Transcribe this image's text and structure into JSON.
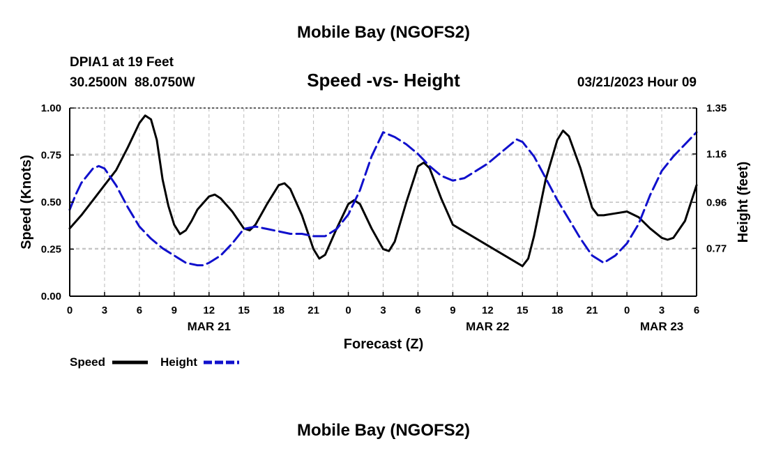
{
  "chart_data": {
    "type": "line",
    "title": "Mobile Bay (NGOFS2)",
    "footer_title": "Mobile Bay (NGOFS2)",
    "subtitle": "Speed -vs- Height",
    "station": "DPIA1 at 19 Feet",
    "coords": "30.2500N  88.0750W",
    "timestamp": "03/21/2023 Hour 09",
    "xlabel": "Forecast (Z)",
    "ylabel_left": "Speed (Knots)",
    "ylabel_right": "Height (feet)",
    "x_range_hours": [
      0,
      54
    ],
    "ylim_left": [
      0,
      1
    ],
    "ylim_right": [
      0.572,
      1.35
    ],
    "grid": true,
    "x_ticks": [
      {
        "hour": 0,
        "label": "0"
      },
      {
        "hour": 3,
        "label": "3"
      },
      {
        "hour": 6,
        "label": "6"
      },
      {
        "hour": 9,
        "label": "9"
      },
      {
        "hour": 12,
        "label": "12"
      },
      {
        "hour": 15,
        "label": "15"
      },
      {
        "hour": 18,
        "label": "18"
      },
      {
        "hour": 21,
        "label": "21"
      },
      {
        "hour": 24,
        "label": "0"
      },
      {
        "hour": 27,
        "label": "3"
      },
      {
        "hour": 30,
        "label": "6"
      },
      {
        "hour": 33,
        "label": "9"
      },
      {
        "hour": 36,
        "label": "12"
      },
      {
        "hour": 39,
        "label": "15"
      },
      {
        "hour": 42,
        "label": "18"
      },
      {
        "hour": 45,
        "label": "21"
      },
      {
        "hour": 48,
        "label": "0"
      },
      {
        "hour": 51,
        "label": "3"
      },
      {
        "hour": 54,
        "label": "6"
      }
    ],
    "date_labels": [
      {
        "hour": 12,
        "label": "MAR 21"
      },
      {
        "hour": 36,
        "label": "MAR 22"
      },
      {
        "hour": 51,
        "label": "MAR 23"
      }
    ],
    "left_ticks": [
      {
        "value": 0.0,
        "label": "0.00"
      },
      {
        "value": 0.25,
        "label": "0.25"
      },
      {
        "value": 0.5,
        "label": "0.50"
      },
      {
        "value": 0.75,
        "label": "0.75"
      },
      {
        "value": 1.0,
        "label": "1.00"
      }
    ],
    "right_ticks": [
      {
        "value": 0.77,
        "label": "0.77"
      },
      {
        "value": 0.96,
        "label": "0.96"
      },
      {
        "value": 1.16,
        "label": "1.16"
      },
      {
        "value": 1.35,
        "label": "1.35"
      }
    ],
    "legend": [
      {
        "name": "Speed",
        "color": "#000000",
        "dash": "solid"
      },
      {
        "name": "Height",
        "color": "#1010cc",
        "dash": "dashed"
      }
    ],
    "series": [
      {
        "name": "Speed",
        "axis": "left",
        "color": "#000000",
        "dash": "solid",
        "x": [
          0,
          1,
          2,
          3,
          4,
          5,
          6,
          6.5,
          7,
          7.5,
          8,
          8.5,
          9,
          9.5,
          10,
          10.5,
          11,
          12,
          12.5,
          13,
          14,
          15,
          15.5,
          16,
          17,
          18,
          18.5,
          19,
          20,
          21,
          21.5,
          22,
          23,
          24,
          24.5,
          25,
          26,
          27,
          27.5,
          28,
          29,
          30,
          30.5,
          31,
          32,
          33,
          39,
          39.5,
          40,
          41,
          42,
          42.5,
          43,
          44,
          45,
          45.5,
          46,
          47,
          48,
          49,
          50,
          51,
          51.5,
          52,
          53,
          54
        ],
        "y": [
          0.36,
          0.43,
          0.51,
          0.59,
          0.67,
          0.79,
          0.92,
          0.96,
          0.94,
          0.83,
          0.62,
          0.48,
          0.38,
          0.33,
          0.35,
          0.4,
          0.46,
          0.53,
          0.54,
          0.52,
          0.45,
          0.36,
          0.35,
          0.38,
          0.49,
          0.59,
          0.6,
          0.57,
          0.43,
          0.25,
          0.2,
          0.22,
          0.36,
          0.49,
          0.51,
          0.49,
          0.36,
          0.25,
          0.24,
          0.29,
          0.5,
          0.69,
          0.71,
          0.68,
          0.52,
          0.38,
          0.16,
          0.2,
          0.32,
          0.62,
          0.83,
          0.88,
          0.85,
          0.68,
          0.47,
          0.43,
          0.43,
          0.44,
          0.45,
          0.42,
          0.36,
          0.31,
          0.3,
          0.31,
          0.4,
          0.59
        ]
      },
      {
        "name": "Height",
        "axis": "right",
        "color": "#1010cc",
        "dash": "dashed",
        "x": [
          0,
          0.5,
          1,
          2,
          2.5,
          3,
          4,
          5,
          6,
          7,
          8,
          9,
          10,
          11,
          11.5,
          12,
          13,
          14,
          15,
          16,
          17,
          18,
          19,
          20,
          21,
          22,
          23,
          24,
          25,
          26,
          27,
          28,
          29,
          30,
          31,
          32,
          33,
          34,
          35,
          36,
          37,
          38,
          38.5,
          39,
          40,
          41,
          42,
          43,
          44,
          45,
          46,
          47,
          48,
          49,
          50,
          51,
          52,
          53,
          54
        ],
        "y": [
          0.93,
          0.99,
          1.04,
          1.1,
          1.11,
          1.1,
          1.03,
          0.94,
          0.86,
          0.81,
          0.77,
          0.74,
          0.71,
          0.7,
          0.7,
          0.71,
          0.74,
          0.79,
          0.85,
          0.86,
          0.85,
          0.84,
          0.83,
          0.83,
          0.82,
          0.82,
          0.85,
          0.91,
          1.01,
          1.15,
          1.25,
          1.23,
          1.2,
          1.16,
          1.11,
          1.07,
          1.05,
          1.06,
          1.09,
          1.12,
          1.16,
          1.2,
          1.22,
          1.21,
          1.15,
          1.06,
          0.97,
          0.89,
          0.81,
          0.74,
          0.71,
          0.74,
          0.79,
          0.87,
          0.99,
          1.09,
          1.15,
          1.2,
          1.25
        ]
      }
    ]
  }
}
